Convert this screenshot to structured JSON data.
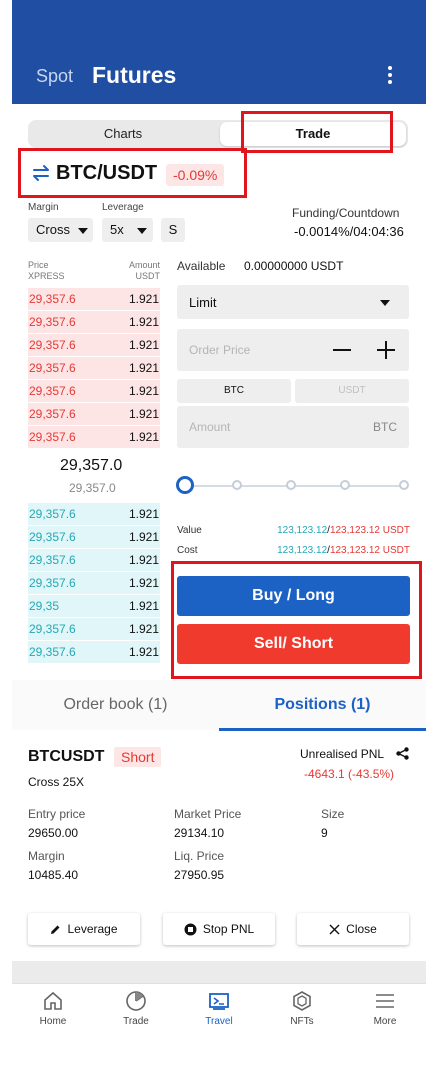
{
  "header": {
    "tab_spot": "Spot",
    "tab_futures": "Futures",
    "menu_icon": "kebab-menu-icon"
  },
  "view_toggle": {
    "charts": "Charts",
    "trade": "Trade",
    "selected": "Trade"
  },
  "pair": {
    "name": "BTC/USDT",
    "change": "-0.09%",
    "icon": "swap-arrows-icon"
  },
  "controls": {
    "margin_label": "Margin",
    "margin_value": "Cross",
    "leverage_label": "Leverage",
    "leverage_value": "5x",
    "s_button": "S"
  },
  "funding": {
    "label": "Funding/Countdown",
    "value": "-0.0014%/04:04:36"
  },
  "orderbook": {
    "price_header": [
      "Price",
      "XPRESS"
    ],
    "amount_header": [
      "Amount",
      "USDT"
    ],
    "asks": [
      {
        "price": "29,357.6",
        "qty": "1.921"
      },
      {
        "price": "29,357.6",
        "qty": "1.921"
      },
      {
        "price": "29,357.6",
        "qty": "1.921"
      },
      {
        "price": "29,357.6",
        "qty": "1.921"
      },
      {
        "price": "29,357.6",
        "qty": "1.921"
      },
      {
        "price": "29,357.6",
        "qty": "1.921"
      },
      {
        "price": "29,357.6",
        "qty": "1.921"
      }
    ],
    "mid_price": "29,357.0",
    "mid_sub": "29,357.0",
    "bids": [
      {
        "price": "29,357.6",
        "qty": "1.921"
      },
      {
        "price": "29,357.6",
        "qty": "1.921"
      },
      {
        "price": "29,357.6",
        "qty": "1.921"
      },
      {
        "price": "29,357.6",
        "qty": "1.921"
      },
      {
        "price": "29,35",
        "qty": "1.921"
      },
      {
        "price": "29,357.6",
        "qty": "1.921"
      },
      {
        "price": "29,357.6",
        "qty": "1.921"
      }
    ]
  },
  "order_form": {
    "available_label": "Available",
    "available_value": "0.00000000 USDT",
    "order_type": "Limit",
    "price_placeholder": "Order Price",
    "unit_btc": "BTC",
    "unit_usdt": "USDT",
    "amount_placeholder": "Amount",
    "amount_unit": "BTC",
    "slider_percent": 0,
    "value_label": "Value",
    "value_buy": "123,123.12",
    "value_sell": "123,123.12 USDT",
    "cost_label": "Cost",
    "cost_buy": "123,123.12",
    "cost_sell": "123,123.12 USDT",
    "buy_label": "Buy / Long",
    "sell_label": "Sell/ Short"
  },
  "bottom_tabs": {
    "orderbook": "Order book (1)",
    "positions": "Positions (1)",
    "selected": "Positions (1)"
  },
  "position": {
    "symbol": "BTCUSDT",
    "side": "Short",
    "leverage": "Cross 25X",
    "upnl_label": "Unrealised PNL",
    "upnl_value": "-4643.1 (-43.5%)",
    "entry_label": "Entry price",
    "entry_value": "29650.00",
    "market_label": "Market Price",
    "market_value": "29134.10",
    "size_label": "Size",
    "size_value": "9",
    "margin_label": "Margin",
    "margin_value": "10485.40",
    "liq_label": "Liq. Price",
    "liq_value": "27950.95",
    "btn_leverage": "Leverage",
    "btn_stop": "Stop PNL",
    "btn_close": "Close"
  },
  "nav": [
    {
      "label": "Home",
      "icon": "home-icon"
    },
    {
      "label": "Trade",
      "icon": "pie-chart-icon"
    },
    {
      "label": "Travel",
      "icon": "travel-screen-icon",
      "active": true
    },
    {
      "label": "NFTs",
      "icon": "hexagon-icon"
    },
    {
      "label": "More",
      "icon": "menu-lines-icon"
    }
  ],
  "colors": {
    "brand": "#1f4ea3",
    "accent": "#1b62c4",
    "sell": "#f03a2e",
    "down_text": "#e53935",
    "up_text": "#26a8b5",
    "highlight": "#e0161d"
  }
}
